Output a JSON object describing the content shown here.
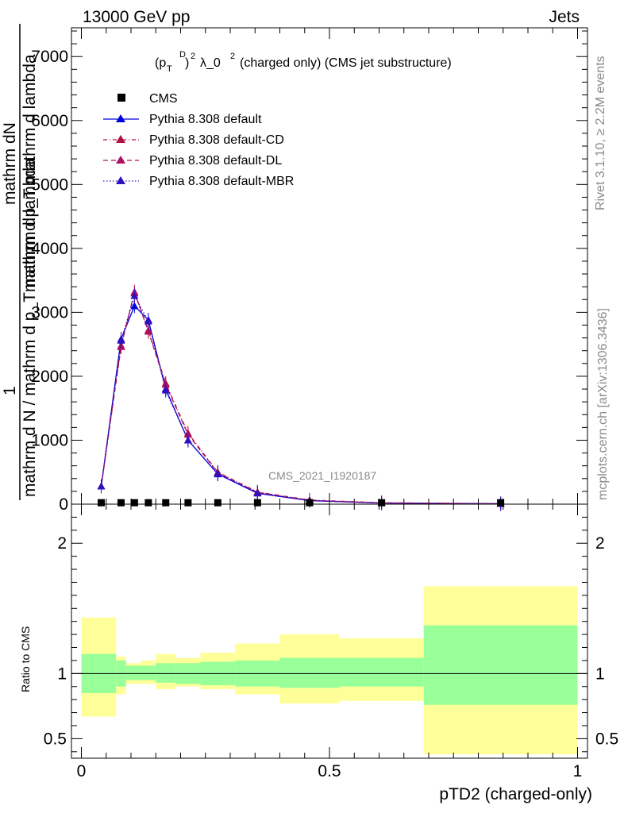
{
  "header": {
    "left": "13000 GeV pp",
    "right": "Jets"
  },
  "side": {
    "rivet": "Rivet 3.1.10, ≥ 2.2M events",
    "mcplots": "mcplots.cern.ch [arXiv:1306.3436]"
  },
  "watermark": "CMS_2021_I1920187",
  "y_title": {
    "one": "1",
    "numerator": "mathrm dN",
    "denominator_top": "mathrm d p_T mathrm d lambda",
    "denominator_bottom": "mathrm d N / mathrm d p_T mathrm d lambda"
  },
  "chart_data": [
    {
      "type": "line",
      "title": "(p_T^D)^2 λ_0^2 (charged only) (CMS jet substructure)",
      "title_parts": {
        "p": "(p",
        "T": "T",
        "D": "D",
        "close": ")",
        "sq": "2",
        "mid": "λ_0",
        "sq2": "2",
        "tail": "(charged only) (CMS jet substructure)"
      },
      "xlabel": "",
      "ylabel": "",
      "xlim": [
        -0.02,
        1.02
      ],
      "ylim": [
        0,
        7450
      ],
      "yticks": [
        0,
        1000,
        2000,
        3000,
        4000,
        5000,
        6000,
        7000
      ],
      "ytick_labels": [
        "0",
        "1000",
        "2000",
        "3000",
        "4000",
        "5000",
        "6000",
        "7000"
      ],
      "legend_position": "top-left",
      "data_points": {
        "name": "CMS",
        "x": [
          0.04,
          0.08,
          0.107,
          0.135,
          0.17,
          0.215,
          0.275,
          0.355,
          0.46,
          0.605,
          0.845
        ],
        "y": [
          10,
          10,
          10,
          10,
          10,
          10,
          10,
          10,
          10,
          10,
          10
        ]
      },
      "series": [
        {
          "name": "Pythia 8.308 default",
          "color": "#0000dd",
          "dash": "solid",
          "x": [
            0.04,
            0.08,
            0.107,
            0.135,
            0.17,
            0.215,
            0.275,
            0.355,
            0.46,
            0.605,
            0.845
          ],
          "y": [
            280,
            2580,
            3100,
            2880,
            1800,
            1000,
            470,
            170,
            55,
            18,
            6
          ]
        },
        {
          "name": "Pythia 8.308 default-CD",
          "color": "#b01040",
          "dash": "5,3,1,3",
          "x": [
            0.04,
            0.08,
            0.107,
            0.135,
            0.17,
            0.215,
            0.275,
            0.355,
            0.46,
            0.605,
            0.845
          ],
          "y": [
            280,
            2480,
            3300,
            2720,
            1890,
            1110,
            500,
            190,
            65,
            22,
            7
          ]
        },
        {
          "name": "Pythia 8.308 default-DL",
          "color": "#b01060",
          "dash": "6,4",
          "x": [
            0.04,
            0.08,
            0.107,
            0.135,
            0.17,
            0.215,
            0.275,
            0.355,
            0.46,
            0.605,
            0.845
          ],
          "y": [
            280,
            2460,
            3320,
            2700,
            1870,
            1090,
            490,
            185,
            60,
            20,
            7
          ]
        },
        {
          "name": "Pythia 8.308 default-MBR",
          "color": "#3010c0",
          "dash": "1.5,2.5",
          "x": [
            0.04,
            0.08,
            0.107,
            0.135,
            0.17,
            0.215,
            0.275,
            0.355,
            0.46,
            0.605,
            0.845
          ],
          "y": [
            280,
            2560,
            3260,
            2860,
            1780,
            1000,
            480,
            175,
            58,
            19,
            6
          ]
        }
      ]
    },
    {
      "type": "area",
      "title": "",
      "xlabel": "pTD2 (charged-only)",
      "ylabel": "Ratio to CMS",
      "xlim": [
        -0.02,
        1.02
      ],
      "ylim": [
        0.35,
        2.3
      ],
      "yticks": [
        0.5,
        1,
        2
      ],
      "ytick_labels": [
        "0.5",
        "1",
        "2"
      ],
      "xticks": [
        0,
        0.5,
        1
      ],
      "xtick_labels": [
        "0",
        "0.5",
        "1"
      ],
      "reference_line": 1,
      "bins": {
        "edges": [
          0.0,
          0.07,
          0.09,
          0.12,
          0.15,
          0.19,
          0.24,
          0.31,
          0.4,
          0.52,
          0.69,
          1.0
        ],
        "green_low": [
          0.85,
          0.9,
          0.95,
          0.95,
          0.93,
          0.92,
          0.91,
          0.9,
          0.89,
          0.9,
          0.76
        ],
        "green_high": [
          1.15,
          1.1,
          1.06,
          1.06,
          1.08,
          1.08,
          1.09,
          1.1,
          1.12,
          1.12,
          1.37
        ],
        "yellow_low": [
          0.67,
          0.84,
          0.92,
          0.92,
          0.88,
          0.9,
          0.88,
          0.84,
          0.77,
          0.79,
          0.38
        ],
        "yellow_high": [
          1.43,
          1.13,
          1.08,
          1.1,
          1.15,
          1.12,
          1.16,
          1.23,
          1.3,
          1.27,
          1.67
        ]
      },
      "colors": {
        "green": "#99ff99",
        "yellow": "#ffff99"
      }
    }
  ]
}
